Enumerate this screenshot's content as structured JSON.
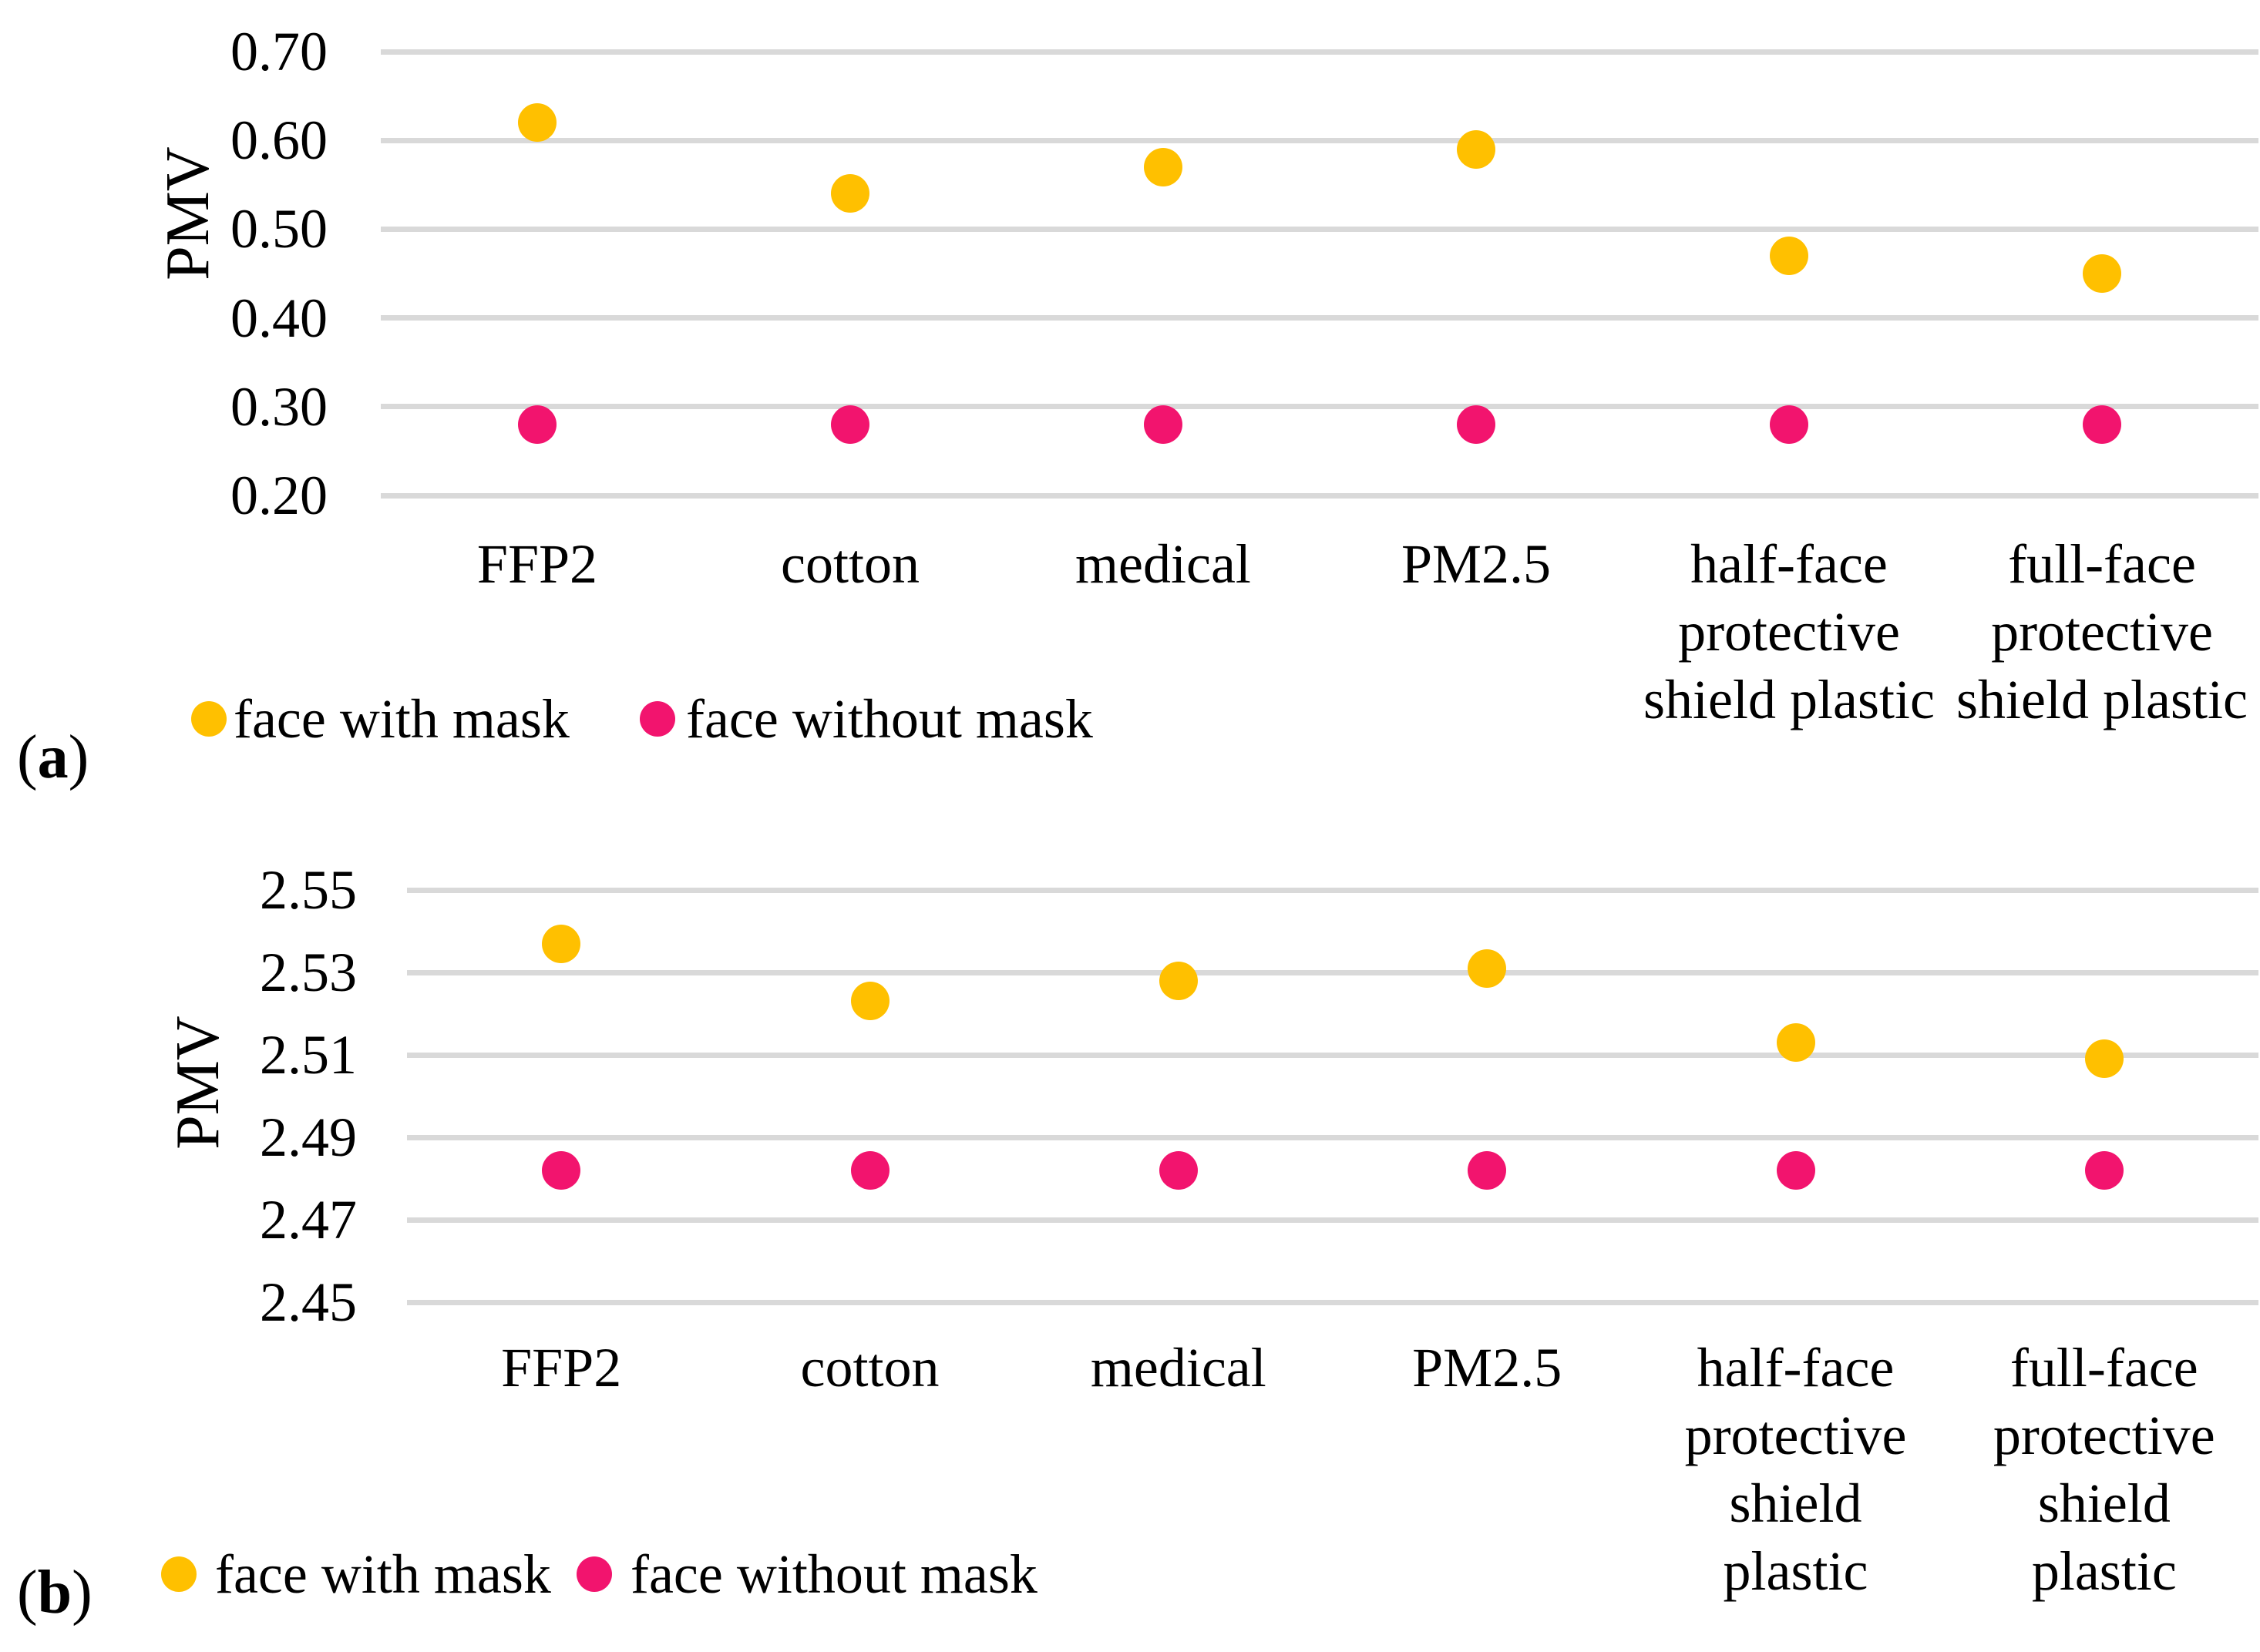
{
  "page": {
    "background": "#ffffff"
  },
  "colors": {
    "face_with_mask": "#FFC000",
    "face_without_mask": "#F2146E",
    "gridline": "#D9D9D9",
    "text": "#000000"
  },
  "legend": {
    "with_mask_label": "face with mask",
    "without_mask_label": "face without mask"
  },
  "chart_data": [
    {
      "panel": "a",
      "type": "scatter",
      "title": "",
      "xlabel": "",
      "ylabel": "PMV",
      "grid": true,
      "legend_position": "bottom-left",
      "ylim": [
        0.2,
        0.7
      ],
      "yticks": [
        {
          "value": 0.7,
          "label": "0.70"
        },
        {
          "value": 0.6,
          "label": "0.60"
        },
        {
          "value": 0.5,
          "label": "0.50"
        },
        {
          "value": 0.4,
          "label": "0.40"
        },
        {
          "value": 0.3,
          "label": "0.30"
        },
        {
          "value": 0.2,
          "label": "0.20"
        }
      ],
      "categories": [
        "FFP2",
        "cotton",
        "medical",
        "PM2.5",
        "half-face protective shield plastic",
        "full-face protective shield plastic"
      ],
      "categories_wrapped": [
        [
          "FFP2"
        ],
        [
          "cotton"
        ],
        [
          "medical"
        ],
        [
          "PM2.5"
        ],
        [
          "half-face",
          "protective",
          "shield plastic"
        ],
        [
          "full-face",
          "protective",
          "shield plastic"
        ]
      ],
      "series": [
        {
          "name": "face with mask",
          "color": "#FFC000",
          "values": [
            0.62,
            0.54,
            0.57,
            0.59,
            0.47,
            0.45
          ]
        },
        {
          "name": "face without mask",
          "color": "#F2146E",
          "values": [
            0.28,
            0.28,
            0.28,
            0.28,
            0.28,
            0.28
          ]
        }
      ]
    },
    {
      "panel": "b",
      "type": "scatter",
      "title": "",
      "xlabel": "",
      "ylabel": "PMV",
      "grid": true,
      "legend_position": "bottom-left",
      "ylim": [
        2.45,
        2.55
      ],
      "yticks": [
        {
          "value": 2.55,
          "label": "2.55"
        },
        {
          "value": 2.53,
          "label": "2.53"
        },
        {
          "value": 2.51,
          "label": "2.51"
        },
        {
          "value": 2.49,
          "label": "2.49"
        },
        {
          "value": 2.47,
          "label": "2.47"
        },
        {
          "value": 2.45,
          "label": "2.45"
        }
      ],
      "categories": [
        "FFP2",
        "cotton",
        "medical",
        "PM2.5",
        "half-face protective shield plastic",
        "full-face protective shield plastic"
      ],
      "categories_wrapped": [
        [
          "FFP2"
        ],
        [
          "cotton"
        ],
        [
          "medical"
        ],
        [
          "PM2.5"
        ],
        [
          "half-face",
          "protective",
          "shield",
          "plastic"
        ],
        [
          "full-face",
          "protective",
          "shield",
          "plastic"
        ]
      ],
      "series": [
        {
          "name": "face with mask",
          "color": "#FFC000",
          "values": [
            2.537,
            2.523,
            2.528,
            2.531,
            2.513,
            2.509
          ]
        },
        {
          "name": "face without mask",
          "color": "#F2146E",
          "values": [
            2.482,
            2.482,
            2.482,
            2.482,
            2.482,
            2.482
          ]
        }
      ]
    }
  ]
}
